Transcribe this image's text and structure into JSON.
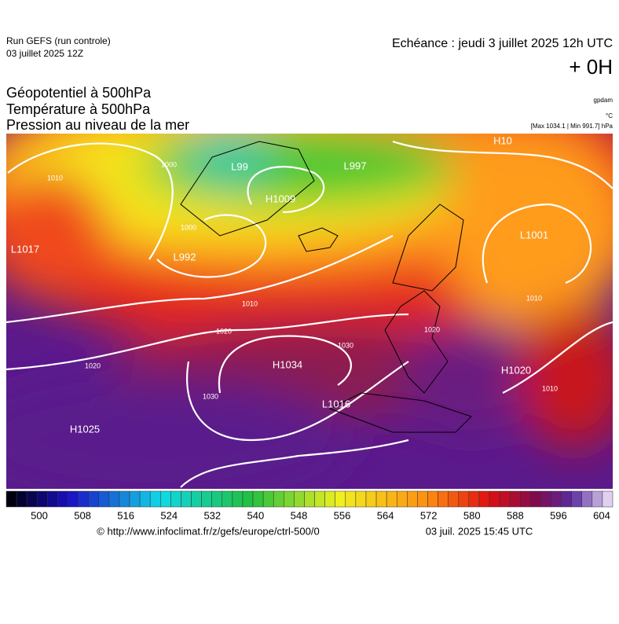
{
  "header": {
    "run": "Run GEFS (run controle)",
    "run_date": "03 juillet 2025 12Z",
    "valid": "Echéance : jeudi 3 juillet 2025 12h UTC",
    "lead": "+ 0H",
    "fields": [
      "Géopotentiel à 500hPa",
      "Température à 500hPa",
      "Pression au niveau de la mer"
    ],
    "units_geo": "gpdam",
    "units_temp": "°C",
    "extremes": "[Max 1034.1 | Min 991.7] hPa"
  },
  "map": {
    "centers": [
      "L99",
      "L997",
      "H1009",
      "L992",
      "H1034",
      "L1016",
      "H1025",
      "H1020",
      "L1001",
      "H10",
      "L1017"
    ],
    "isobar_labels": [
      "1010",
      "1010",
      "1020",
      "1020",
      "1030",
      "1030",
      "1000",
      "1000",
      "1010",
      "1010",
      "1020"
    ]
  },
  "colorbar": {
    "ticks": [
      500,
      508,
      516,
      524,
      532,
      540,
      548,
      556,
      564,
      572,
      580,
      588,
      596,
      604
    ]
  },
  "footer": {
    "source": "© http://www.infoclimat.fr/z/gefs/europe/ctrl-500/0",
    "generated": "03 juil. 2025 15:45 UTC"
  }
}
